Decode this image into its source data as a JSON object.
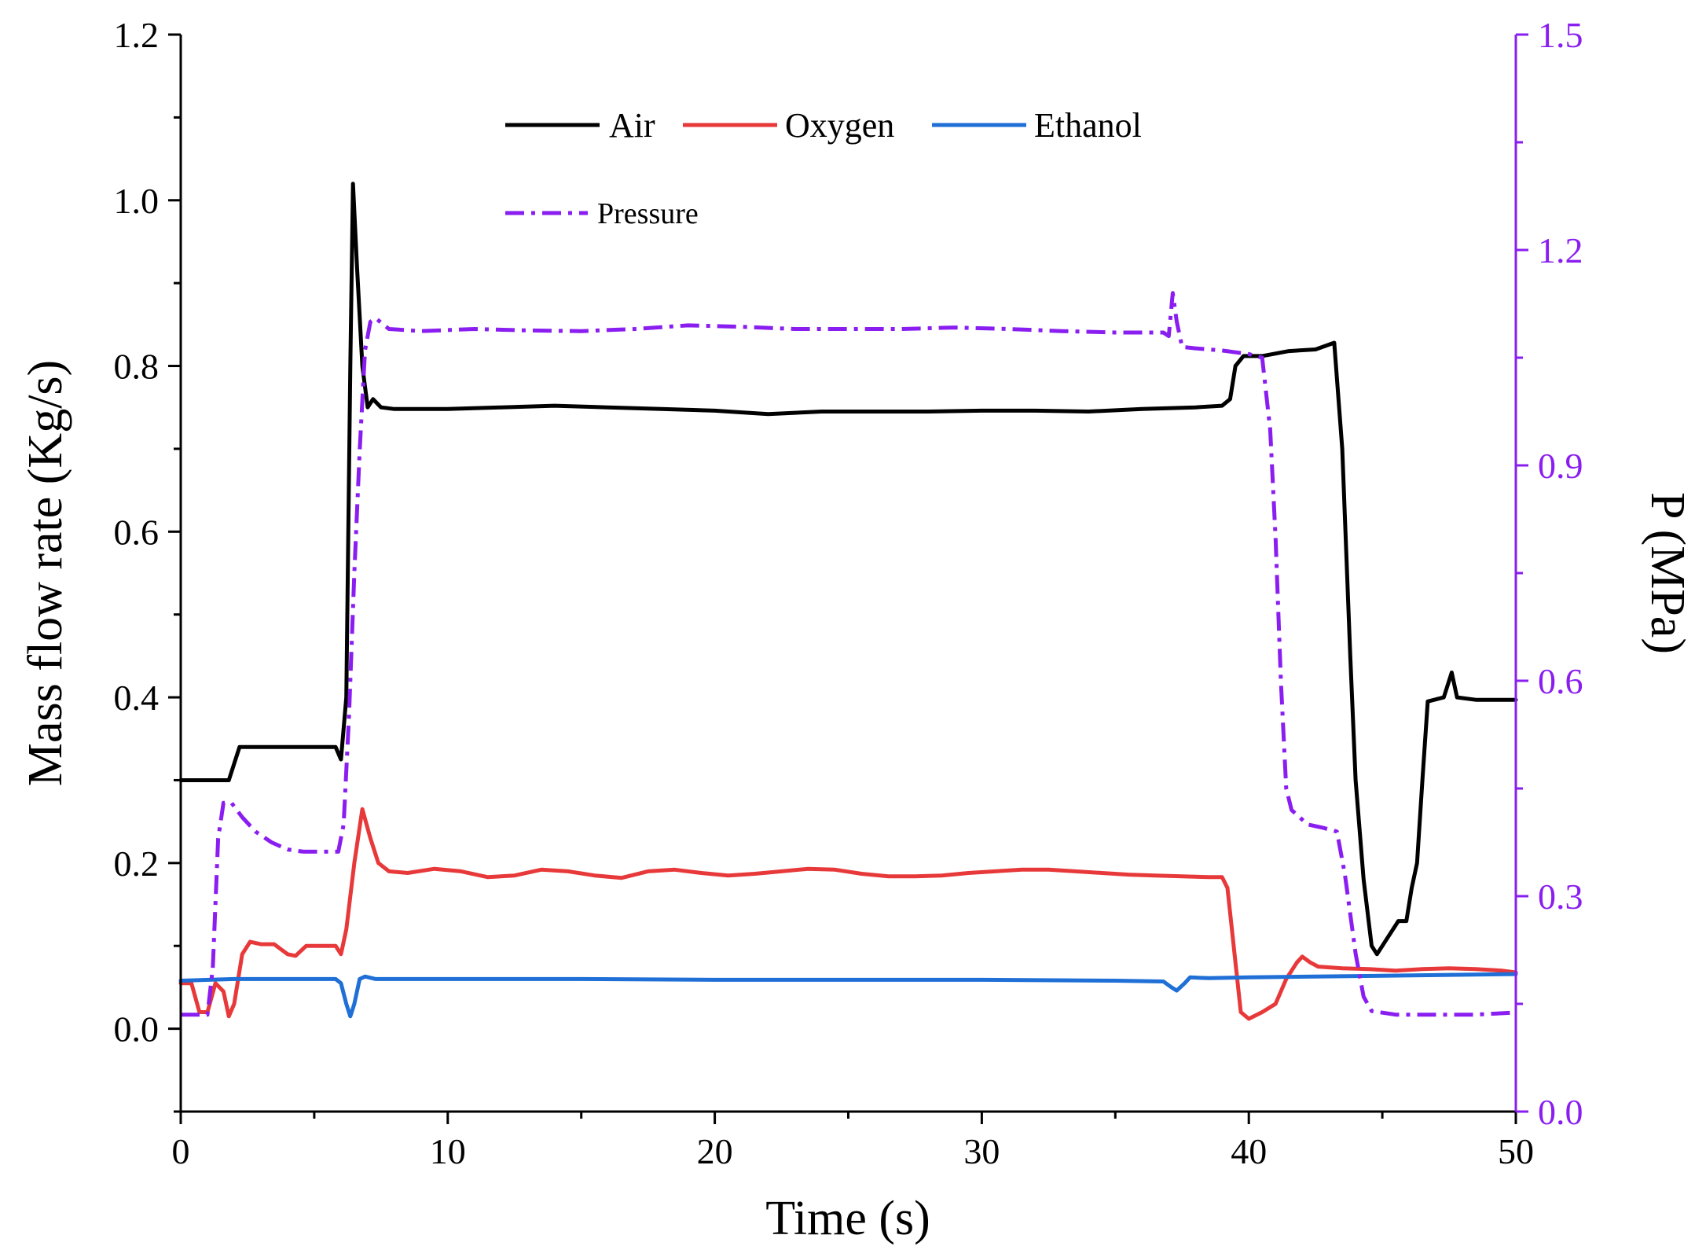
{
  "chart_data": {
    "type": "line",
    "title": "",
    "xlabel": "Time (s)",
    "ylabel": "Mass flow rate (Kg/s)",
    "y2label": "P (MPa)",
    "xlim": [
      0,
      50
    ],
    "ylim": [
      -0.1,
      1.2
    ],
    "y2lim": [
      0,
      1.5
    ],
    "xticks": [
      0,
      10,
      20,
      30,
      40,
      50
    ],
    "xtick_labels": [
      "0",
      "10",
      "20",
      "30",
      "40",
      "50"
    ],
    "yticks": [
      0.0,
      0.2,
      0.4,
      0.6,
      0.8,
      1.0,
      1.2
    ],
    "ytick_labels": [
      "0.0",
      "0.2",
      "0.4",
      "0.6",
      "0.8",
      "1.0",
      "1.2"
    ],
    "y2ticks": [
      0.0,
      0.3,
      0.6,
      0.9,
      1.2,
      1.5
    ],
    "y2tick_labels": [
      "0.0",
      "0.3",
      "0.6",
      "0.9",
      "1.2",
      "1.5"
    ],
    "grid": false,
    "legend_position": "top-center",
    "colors": {
      "air": "#000000",
      "oxygen": "#e8393a",
      "ethanol": "#1f6fd6",
      "pressure": "#8a1ef0",
      "right_axis": "#8a1ef0"
    },
    "series": [
      {
        "name": "Air",
        "axis": "left",
        "style": "solid",
        "color": "#000000",
        "points": [
          [
            0,
            0.3
          ],
          [
            1.8,
            0.3
          ],
          [
            2.0,
            0.32
          ],
          [
            2.2,
            0.34
          ],
          [
            3,
            0.34
          ],
          [
            4,
            0.34
          ],
          [
            5,
            0.34
          ],
          [
            5.8,
            0.34
          ],
          [
            6.0,
            0.325
          ],
          [
            6.2,
            0.4
          ],
          [
            6.35,
            0.8
          ],
          [
            6.45,
            1.02
          ],
          [
            6.6,
            0.92
          ],
          [
            6.8,
            0.8
          ],
          [
            7.0,
            0.75
          ],
          [
            7.2,
            0.76
          ],
          [
            7.5,
            0.75
          ],
          [
            8,
            0.748
          ],
          [
            10,
            0.748
          ],
          [
            12,
            0.75
          ],
          [
            14,
            0.752
          ],
          [
            16,
            0.75
          ],
          [
            18,
            0.748
          ],
          [
            20,
            0.746
          ],
          [
            22,
            0.742
          ],
          [
            24,
            0.745
          ],
          [
            26,
            0.745
          ],
          [
            28,
            0.745
          ],
          [
            30,
            0.746
          ],
          [
            32,
            0.746
          ],
          [
            34,
            0.745
          ],
          [
            36,
            0.748
          ],
          [
            38,
            0.75
          ],
          [
            39.0,
            0.752
          ],
          [
            39.3,
            0.76
          ],
          [
            39.5,
            0.8
          ],
          [
            39.8,
            0.812
          ],
          [
            40.5,
            0.812
          ],
          [
            41.5,
            0.818
          ],
          [
            42.5,
            0.82
          ],
          [
            43.2,
            0.828
          ],
          [
            43.5,
            0.7
          ],
          [
            43.8,
            0.45
          ],
          [
            44.0,
            0.3
          ],
          [
            44.3,
            0.18
          ],
          [
            44.6,
            0.1
          ],
          [
            44.8,
            0.09
          ],
          [
            45.2,
            0.11
          ],
          [
            45.6,
            0.13
          ],
          [
            45.9,
            0.13
          ],
          [
            46.1,
            0.17
          ],
          [
            46.3,
            0.2
          ],
          [
            46.5,
            0.3
          ],
          [
            46.7,
            0.395
          ],
          [
            47.3,
            0.4
          ],
          [
            47.6,
            0.43
          ],
          [
            47.8,
            0.4
          ],
          [
            48.5,
            0.397
          ],
          [
            50,
            0.397
          ]
        ]
      },
      {
        "name": "Oxygen",
        "axis": "left",
        "style": "solid",
        "color": "#e8393a",
        "points": [
          [
            0,
            0.055
          ],
          [
            0.4,
            0.055
          ],
          [
            0.7,
            0.02
          ],
          [
            1.0,
            0.02
          ],
          [
            1.3,
            0.055
          ],
          [
            1.6,
            0.045
          ],
          [
            1.8,
            0.015
          ],
          [
            2.0,
            0.03
          ],
          [
            2.3,
            0.09
          ],
          [
            2.6,
            0.105
          ],
          [
            3.0,
            0.102
          ],
          [
            3.5,
            0.102
          ],
          [
            4.0,
            0.09
          ],
          [
            4.3,
            0.088
          ],
          [
            4.7,
            0.1
          ],
          [
            5.2,
            0.1
          ],
          [
            5.8,
            0.1
          ],
          [
            6.0,
            0.09
          ],
          [
            6.2,
            0.12
          ],
          [
            6.5,
            0.2
          ],
          [
            6.8,
            0.265
          ],
          [
            7.1,
            0.23
          ],
          [
            7.4,
            0.2
          ],
          [
            7.8,
            0.19
          ],
          [
            8.5,
            0.188
          ],
          [
            9.5,
            0.193
          ],
          [
            10.5,
            0.19
          ],
          [
            11.5,
            0.183
          ],
          [
            12.5,
            0.185
          ],
          [
            13.5,
            0.192
          ],
          [
            14.5,
            0.19
          ],
          [
            15.5,
            0.185
          ],
          [
            16.5,
            0.182
          ],
          [
            17.5,
            0.19
          ],
          [
            18.5,
            0.192
          ],
          [
            19.5,
            0.188
          ],
          [
            20.5,
            0.185
          ],
          [
            21.5,
            0.187
          ],
          [
            22.5,
            0.19
          ],
          [
            23.5,
            0.193
          ],
          [
            24.5,
            0.192
          ],
          [
            25.5,
            0.187
          ],
          [
            26.5,
            0.184
          ],
          [
            27.5,
            0.184
          ],
          [
            28.5,
            0.185
          ],
          [
            29.5,
            0.188
          ],
          [
            30.5,
            0.19
          ],
          [
            31.5,
            0.192
          ],
          [
            32.5,
            0.192
          ],
          [
            33.5,
            0.19
          ],
          [
            34.5,
            0.188
          ],
          [
            35.5,
            0.186
          ],
          [
            36.5,
            0.185
          ],
          [
            37.5,
            0.184
          ],
          [
            38.5,
            0.183
          ],
          [
            39.0,
            0.183
          ],
          [
            39.2,
            0.17
          ],
          [
            39.5,
            0.08
          ],
          [
            39.7,
            0.02
          ],
          [
            40.0,
            0.012
          ],
          [
            40.5,
            0.02
          ],
          [
            41.0,
            0.03
          ],
          [
            41.4,
            0.06
          ],
          [
            41.8,
            0.08
          ],
          [
            42.0,
            0.087
          ],
          [
            42.3,
            0.08
          ],
          [
            42.6,
            0.075
          ],
          [
            43.5,
            0.073
          ],
          [
            44.5,
            0.072
          ],
          [
            45.5,
            0.07
          ],
          [
            46.5,
            0.072
          ],
          [
            47.5,
            0.073
          ],
          [
            48.5,
            0.072
          ],
          [
            49.5,
            0.07
          ],
          [
            50,
            0.068
          ]
        ]
      },
      {
        "name": "Ethanol",
        "axis": "left",
        "style": "solid",
        "color": "#1f6fd6",
        "points": [
          [
            0,
            0.058
          ],
          [
            2,
            0.06
          ],
          [
            4,
            0.06
          ],
          [
            5.8,
            0.06
          ],
          [
            6.0,
            0.055
          ],
          [
            6.2,
            0.03
          ],
          [
            6.35,
            0.015
          ],
          [
            6.5,
            0.03
          ],
          [
            6.7,
            0.06
          ],
          [
            6.9,
            0.063
          ],
          [
            7.3,
            0.06
          ],
          [
            10,
            0.06
          ],
          [
            15,
            0.06
          ],
          [
            20,
            0.059
          ],
          [
            25,
            0.059
          ],
          [
            30,
            0.059
          ],
          [
            35,
            0.058
          ],
          [
            36.8,
            0.057
          ],
          [
            37.1,
            0.05
          ],
          [
            37.3,
            0.046
          ],
          [
            37.6,
            0.055
          ],
          [
            37.8,
            0.062
          ],
          [
            38.5,
            0.061
          ],
          [
            40,
            0.062
          ],
          [
            45,
            0.064
          ],
          [
            50,
            0.066
          ]
        ]
      },
      {
        "name": "Pressure",
        "axis": "right",
        "style": "dash-dot",
        "color": "#8a1ef0",
        "points": [
          [
            0,
            0.135
          ],
          [
            1.0,
            0.135
          ],
          [
            1.2,
            0.2
          ],
          [
            1.4,
            0.38
          ],
          [
            1.6,
            0.43
          ],
          [
            1.9,
            0.43
          ],
          [
            2.3,
            0.41
          ],
          [
            2.8,
            0.39
          ],
          [
            3.4,
            0.375
          ],
          [
            4.0,
            0.365
          ],
          [
            4.6,
            0.362
          ],
          [
            5.2,
            0.362
          ],
          [
            5.9,
            0.362
          ],
          [
            6.1,
            0.4
          ],
          [
            6.3,
            0.55
          ],
          [
            6.5,
            0.75
          ],
          [
            6.7,
            0.92
          ],
          [
            6.9,
            1.06
          ],
          [
            7.1,
            1.1
          ],
          [
            7.3,
            1.105
          ],
          [
            7.8,
            1.09
          ],
          [
            9,
            1.087
          ],
          [
            11,
            1.09
          ],
          [
            13,
            1.088
          ],
          [
            15,
            1.087
          ],
          [
            17,
            1.09
          ],
          [
            19,
            1.095
          ],
          [
            21,
            1.093
          ],
          [
            23,
            1.09
          ],
          [
            25,
            1.09
          ],
          [
            27,
            1.09
          ],
          [
            29,
            1.092
          ],
          [
            31,
            1.09
          ],
          [
            33,
            1.087
          ],
          [
            35,
            1.085
          ],
          [
            36.8,
            1.085
          ],
          [
            37.0,
            1.08
          ],
          [
            37.15,
            1.14
          ],
          [
            37.3,
            1.1
          ],
          [
            37.5,
            1.065
          ],
          [
            38,
            1.063
          ],
          [
            39,
            1.06
          ],
          [
            40,
            1.055
          ],
          [
            40.5,
            1.05
          ],
          [
            40.8,
            0.95
          ],
          [
            41.0,
            0.8
          ],
          [
            41.2,
            0.6
          ],
          [
            41.4,
            0.45
          ],
          [
            41.6,
            0.42
          ],
          [
            42.2,
            0.4
          ],
          [
            42.8,
            0.395
          ],
          [
            43.3,
            0.39
          ],
          [
            43.6,
            0.33
          ],
          [
            44.0,
            0.22
          ],
          [
            44.3,
            0.16
          ],
          [
            44.6,
            0.14
          ],
          [
            45.5,
            0.135
          ],
          [
            47,
            0.135
          ],
          [
            48.5,
            0.135
          ],
          [
            50,
            0.138
          ]
        ]
      }
    ]
  }
}
